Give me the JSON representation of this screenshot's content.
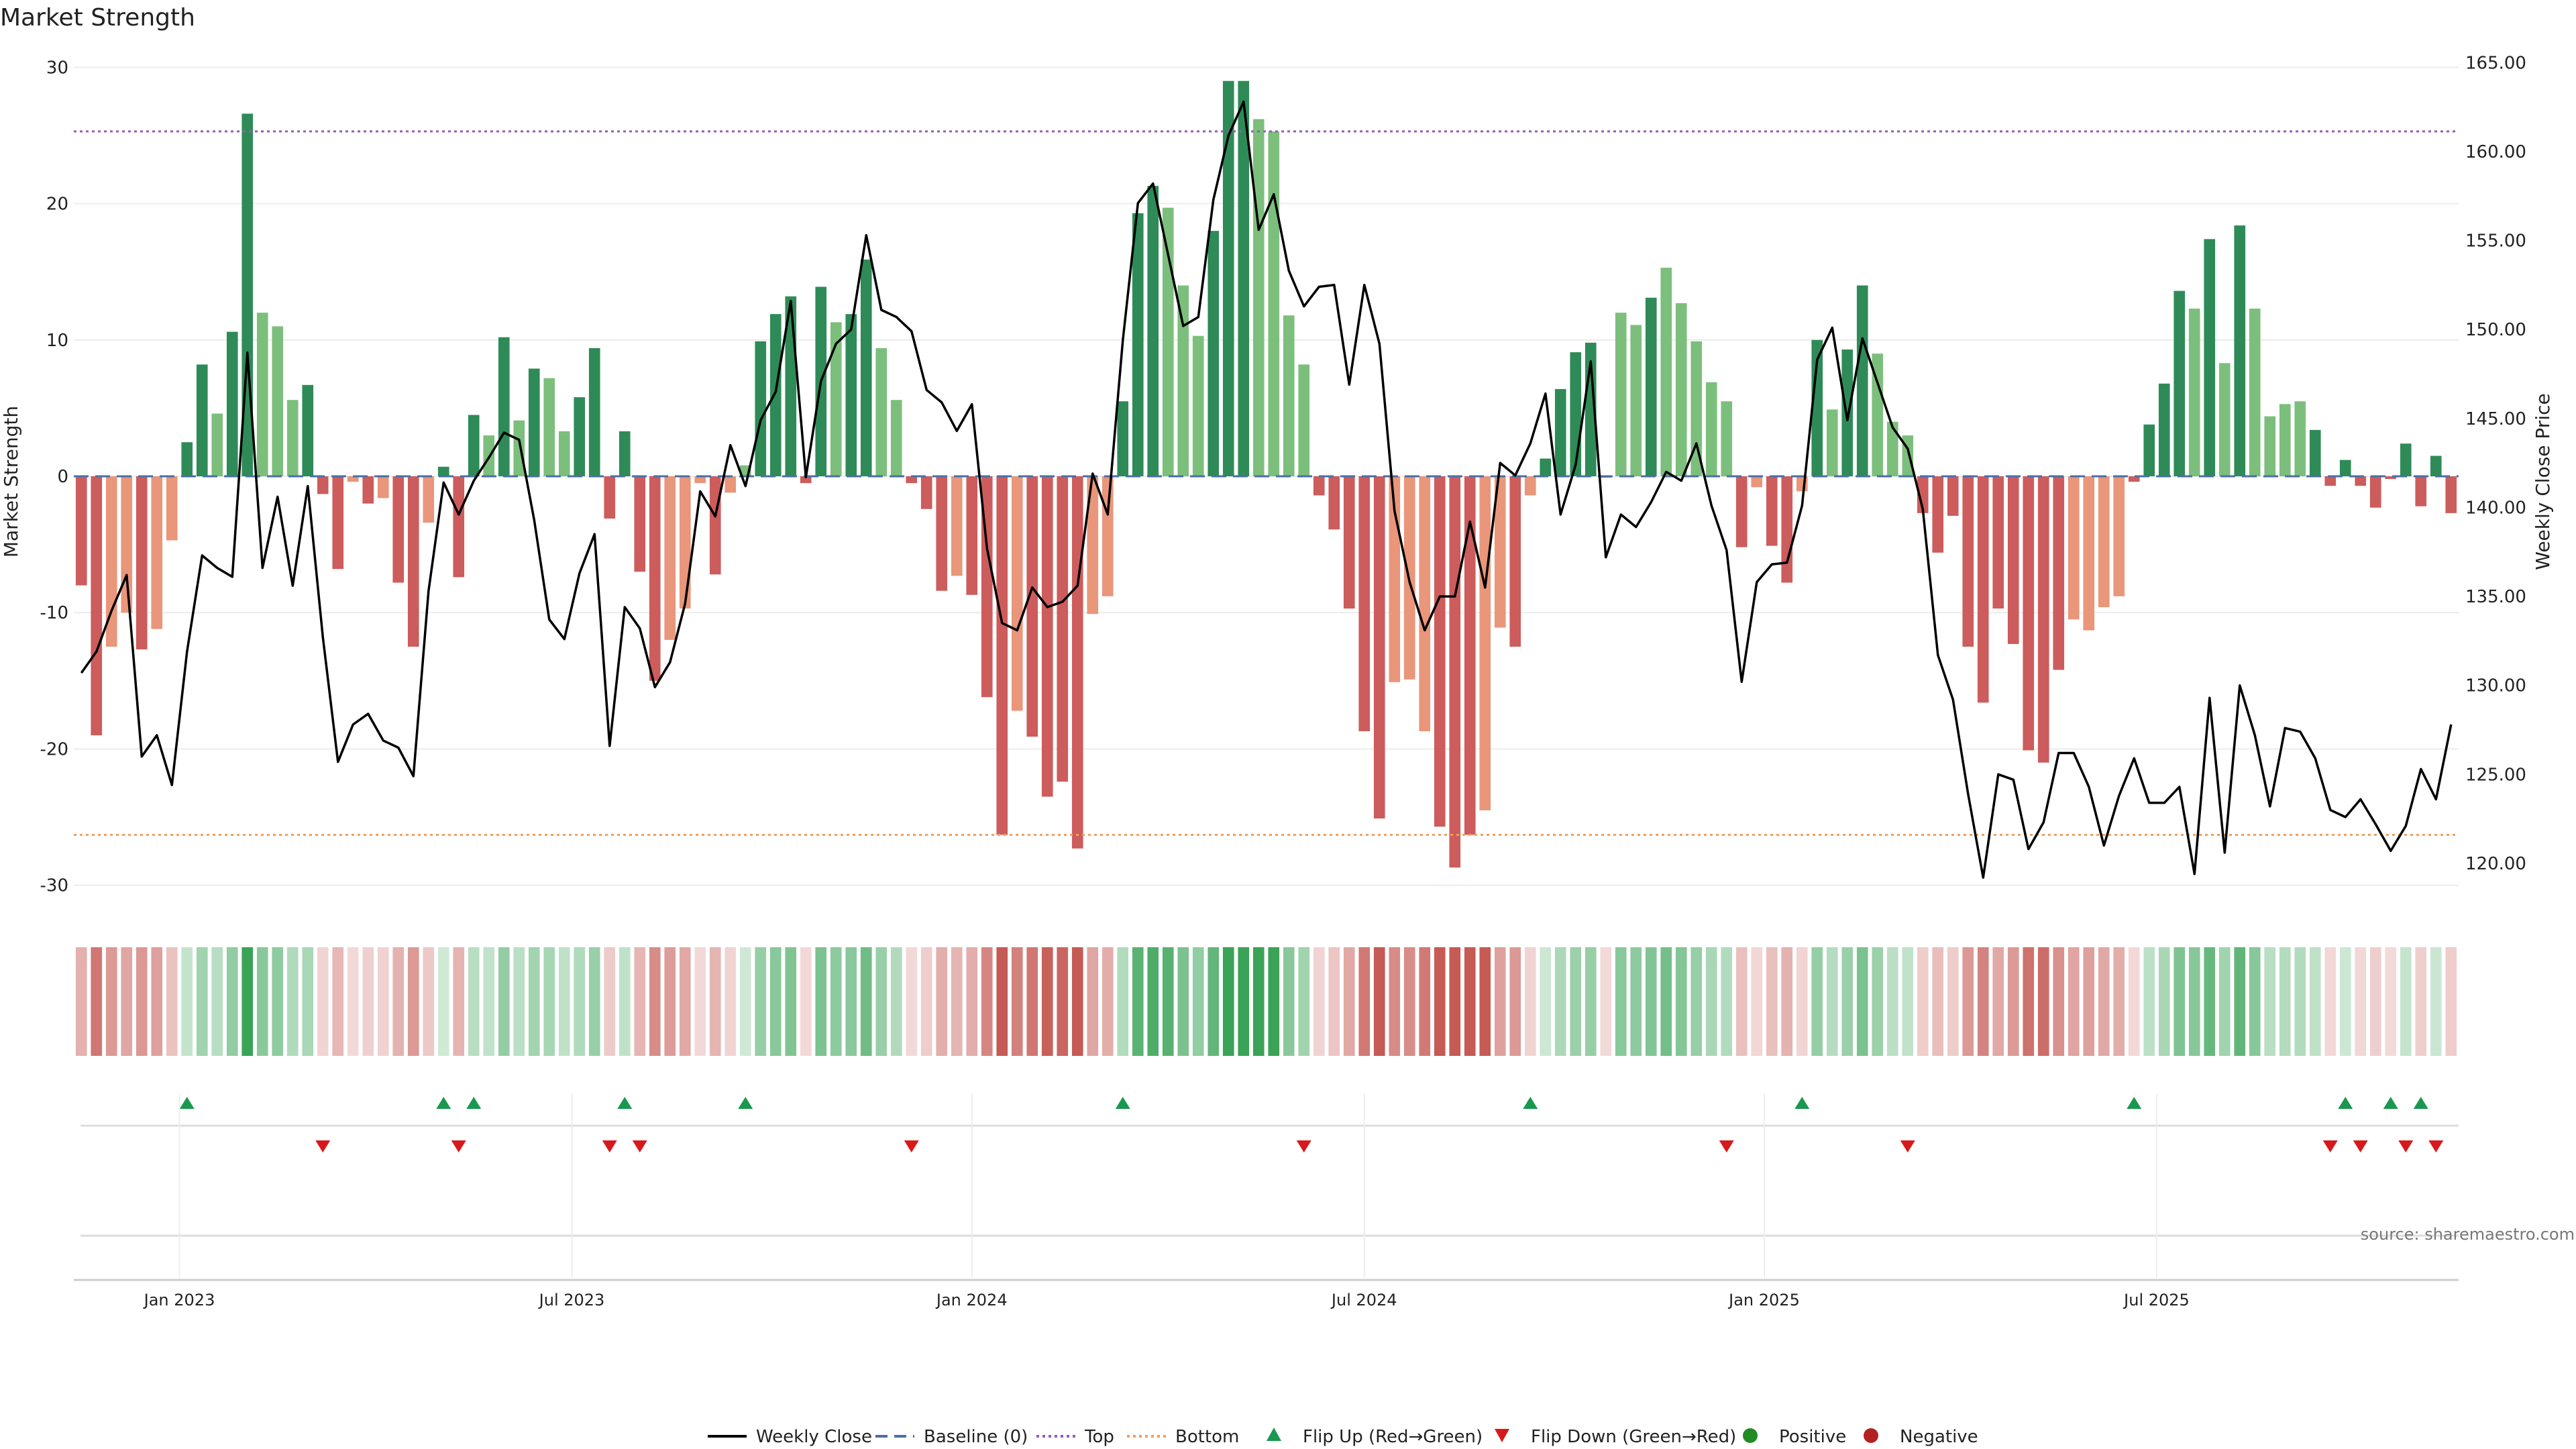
{
  "chart_data": {
    "type": "bar",
    "title": "Market Strength",
    "ylabel": "Market Strength",
    "y2label": "Weekly Close Price",
    "ylim": [
      -31,
      31
    ],
    "y2lim": [
      118,
      165.5
    ],
    "yticks": [
      30,
      20,
      10,
      0,
      -10,
      -20,
      -30
    ],
    "y2ticks": [
      "165.00",
      "160.00",
      "155.00",
      "150.00",
      "145.00",
      "140.00",
      "135.00",
      "130.00",
      "125.00",
      "120.00"
    ],
    "top_line": 25.3,
    "bottom_line": -26.3,
    "x_start_week": 0,
    "x_end_week": 158,
    "xticks": [
      {
        "label": "Jan 2023",
        "week": 7
      },
      {
        "label": "Jul 2023",
        "week": 33
      },
      {
        "label": "Jan 2024",
        "week": 59.5
      },
      {
        "label": "Jul 2024",
        "week": 85.5
      },
      {
        "label": "Jan 2025",
        "week": 112
      },
      {
        "label": "Jul 2025",
        "week": 138
      }
    ],
    "series": [
      {
        "name": "Market Strength",
        "values": [
          -8,
          -19,
          -12.5,
          -10,
          -12.7,
          -11.2,
          -4.7,
          2.5,
          8.2,
          4.6,
          10.6,
          26.6,
          12,
          11,
          5.6,
          6.7,
          -1.3,
          -6.8,
          -0.4,
          -2,
          -1.6,
          -7.8,
          -12.5,
          -3.4,
          0.7,
          -7.4,
          4.5,
          3,
          10.2,
          4.1,
          7.9,
          7.2,
          3.3,
          5.8,
          9.4,
          -3.1,
          3.3,
          -7,
          -15,
          -12,
          -9.7,
          -0.5,
          -7.2,
          -1.2,
          0.8,
          9.9,
          11.9,
          13.2,
          -0.5,
          13.9,
          11.3,
          11.9,
          15.9,
          9.4,
          5.6,
          -0.5,
          -2.4,
          -8.4,
          -7.3,
          -8.7,
          -16.2,
          -26.3,
          -17.2,
          -19.1,
          -23.5,
          -22.4,
          -27.3,
          -10.1,
          -8.8,
          5.5,
          19.3,
          21.3,
          19.7,
          14,
          10.3,
          18,
          29,
          29,
          26.2,
          25.3,
          11.8,
          8.2,
          -1.4,
          -3.9,
          -9.7,
          -18.7,
          -25.1,
          -15.1,
          -14.9,
          -18.7,
          -25.7,
          -28.7,
          -26.3,
          -24.5,
          -11.1,
          -12.5,
          -1.4,
          1.3,
          6.4,
          9.1,
          9.8,
          -0.1,
          12,
          11.1,
          13.1,
          15.3,
          12.7,
          9.9,
          6.9,
          5.5,
          -5.2,
          -0.8,
          -5.1,
          -7.8,
          -1.1,
          10,
          4.9,
          9.3,
          14,
          9,
          4,
          3,
          -2.7,
          -5.6,
          -2.9,
          -12.5,
          -16.6,
          -9.7,
          -12.3,
          -20.1,
          -21,
          -14.2,
          -10.5,
          -11.3,
          -9.6,
          -8.8,
          -0.4,
          3.8,
          6.8,
          13.6,
          12.3,
          17.4,
          8.3,
          18.4,
          12.3,
          4.4,
          5.3,
          5.5,
          3.4,
          -0.7,
          1.2,
          -0.7,
          -2.3,
          -0.2,
          2.4,
          -2.2,
          1.5,
          -2.7
        ],
        "shade": [
          0,
          0,
          1,
          1,
          0,
          1,
          1,
          0,
          0,
          1,
          0,
          0,
          1,
          1,
          1,
          0,
          0,
          0,
          1,
          0,
          1,
          0,
          0,
          1,
          0,
          0,
          0,
          1,
          0,
          1,
          0,
          1,
          1,
          0,
          0,
          0,
          0,
          0,
          0,
          1,
          1,
          1,
          0,
          1,
          1,
          0,
          0,
          0,
          0,
          0,
          1,
          0,
          0,
          1,
          1,
          0,
          0,
          0,
          1,
          0,
          0,
          0,
          1,
          0,
          0,
          0,
          0,
          1,
          1,
          0,
          0,
          0,
          1,
          1,
          1,
          0,
          0,
          0,
          1,
          1,
          1,
          1,
          0,
          0,
          0,
          0,
          0,
          1,
          1,
          1,
          0,
          0,
          0,
          1,
          1,
          0,
          1,
          0,
          0,
          0,
          0,
          0,
          1,
          1,
          0,
          1,
          1,
          1,
          1,
          1,
          0,
          1,
          0,
          0,
          1,
          0,
          1,
          0,
          0,
          1,
          1,
          1,
          0,
          0,
          0,
          0,
          0,
          0,
          0,
          0,
          0,
          0,
          1,
          1,
          1,
          1,
          0,
          0,
          0,
          0,
          1,
          0,
          1,
          0,
          1,
          1,
          1,
          1,
          0,
          0,
          0,
          0,
          0,
          0,
          0,
          0,
          0,
          0,
          0
        ]
      },
      {
        "name": "Weekly Close",
        "axis": "right",
        "values": [
          130.7,
          131.9,
          134.2,
          136.2,
          126,
          127.2,
          124.4,
          131.9,
          137.3,
          136.6,
          136.1,
          148.7,
          136.6,
          140.6,
          135.6,
          141.2,
          132.7,
          125.7,
          127.8,
          128.4,
          126.9,
          126.5,
          124.9,
          135.3,
          141.4,
          139.6,
          141.5,
          142.8,
          144.2,
          143.8,
          139.3,
          133.7,
          132.6,
          136.3,
          138.5,
          126.6,
          134.4,
          133.2,
          129.9,
          131.3,
          134.6,
          140.9,
          139.5,
          143.5,
          141.2,
          144.9,
          146.5,
          151.6,
          141.7,
          147.1,
          149.2,
          150,
          155.3,
          151.1,
          150.7,
          149.9,
          146.6,
          145.9,
          144.3,
          145.8,
          137.7,
          133.5,
          133.1,
          135.5,
          134.4,
          134.7,
          135.6,
          141.9,
          139.6,
          149.4,
          157.1,
          158.2,
          154.2,
          150.2,
          150.7,
          157.3,
          160.9,
          162.8,
          155.6,
          157.6,
          153.3,
          151.3,
          152.4,
          152.5,
          146.9,
          152.5,
          149.2,
          139.8,
          135.8,
          133.1,
          135,
          135,
          139.2,
          135.5,
          142.5,
          141.8,
          143.6,
          146.4,
          139.6,
          142.4,
          148.2,
          137.2,
          139.6,
          138.9,
          140.3,
          142,
          141.5,
          143.6,
          140.1,
          137.6,
          130.2,
          135.8,
          136.8,
          136.9,
          140.1,
          148.3,
          150.1,
          144.9,
          149.5,
          147,
          144.5,
          143.3,
          139.9,
          131.7,
          129.2,
          123.9,
          119.2,
          125,
          124.7,
          120.8,
          122.3,
          126.2,
          126.2,
          124.3,
          121,
          123.8,
          125.9,
          123.4,
          123.4,
          124.3,
          119.4,
          129.3,
          120.6,
          130,
          127.2,
          123.2,
          127.6,
          127.4,
          125.9,
          123,
          122.6,
          123.6,
          122.2,
          120.7,
          122.1,
          125.3,
          123.6,
          127.8
        ]
      }
    ],
    "flip_up_weeks": [
      7,
      24,
      26,
      36,
      44,
      69,
      96,
      114,
      136,
      150,
      153,
      155
    ],
    "flip_down_weeks": [
      16,
      25,
      35,
      37,
      55,
      81,
      109,
      121,
      149,
      151,
      154,
      156
    ],
    "legend": {
      "position": "bottom",
      "entries": [
        "Weekly Close",
        "Baseline (0)",
        "Top",
        "Bottom",
        "Flip Up (Red→Green)",
        "Flip Down (Green→Red)",
        "Positive",
        "Negative"
      ]
    },
    "annotation": "source: sharemaestro.com"
  },
  "colors": {
    "pos_dark": "#2e8b57",
    "pos_light": "#7cbf7c",
    "neg_dark": "#cd5c5c",
    "neg_light": "#e9967a",
    "line": "#000000",
    "baseline": "#4a6fa5",
    "top": "#9b59b6",
    "bottom": "#f0a060",
    "flip_up": "#1a9850",
    "flip_down": "#d7191c",
    "positive": "#228b22",
    "negative": "#b22222"
  }
}
